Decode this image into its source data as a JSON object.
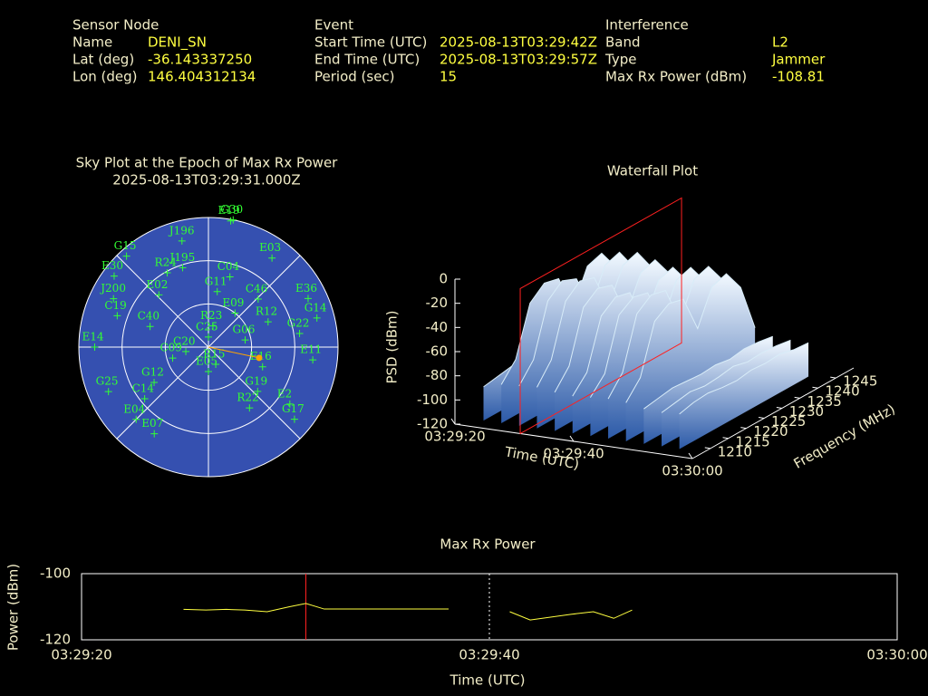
{
  "header": {
    "sections": [
      {
        "title": "Sensor Node",
        "fields": [
          {
            "label": "Name",
            "value": "DENI_SN"
          },
          {
            "label": "Lat (deg)",
            "value": "-36.143337250"
          },
          {
            "label": "Lon (deg)",
            "value": 146.404312134
          }
        ]
      },
      {
        "title": "Event",
        "fields": [
          {
            "label": "Start Time (UTC)",
            "value": "2025-08-13T03:29:42Z"
          },
          {
            "label": "End Time (UTC)",
            "value": "2025-08-13T03:29:57Z"
          },
          {
            "label": "Period (sec)",
            "value": 15
          }
        ]
      },
      {
        "title": "Interference",
        "fields": [
          {
            "label": "Band",
            "value": "L2"
          },
          {
            "label": "Type",
            "value": "Jammer"
          },
          {
            "label": "Max Rx Power (dBm)",
            "value": -108.81
          }
        ]
      }
    ]
  },
  "chart_data": [
    {
      "type": "polar_scatter",
      "title": "Sky Plot at the Epoch of Max Rx Power",
      "subtitle": "2025-08-13T03:29:31.000Z",
      "rlim": [
        90,
        0
      ],
      "rticks": [
        0,
        30,
        60
      ],
      "thetaticks": [
        0,
        45,
        90,
        135,
        180,
        225,
        270,
        315
      ],
      "background": "#3550b0",
      "color": "#33ff33",
      "labels": [
        "J196",
        "G15",
        "E30",
        "R24",
        "J195",
        "C04",
        "G11",
        "E03",
        "C46",
        "E36",
        "G14",
        "R12",
        "G22",
        "E11",
        "E16",
        "G19",
        "R22",
        "E2",
        "G17",
        "E07",
        "E04",
        "C14",
        "G25",
        "E14",
        "G12",
        "C09",
        "E05",
        "R15",
        "C19",
        "J200",
        "E02",
        "C40",
        "R23",
        "G06",
        "E09",
        "C25",
        "C20",
        "G30",
        "E19"
      ],
      "azimuth": [
        346,
        318,
        307,
        331,
        342,
        17,
        9,
        35.5,
        46,
        64,
        75,
        67,
        81.5,
        97,
        110,
        132,
        146,
        125,
        130,
        212,
        225,
        231,
        246,
        270,
        237,
        253,
        180,
        157,
        289,
        297,
        316.5,
        289.5,
        12,
        79,
        38,
        0,
        259,
        11,
        10
      ],
      "elevation": [
        14,
        5,
        8,
        31,
        32,
        39,
        51,
        14,
        42,
        13,
        12,
        45,
        26,
        17,
        50,
        44,
        39,
        21,
        12,
        19,
        19,
        33,
        14,
        11,
        45,
        64,
        73,
        77,
        23,
        16,
        40,
        47,
        75,
        64,
        60,
        83,
        74,
        0,
        1
      ],
      "marker": {
        "azimuth": 102,
        "elevation": 54,
        "color": "#ffa500"
      }
    },
    {
      "type": "waterfall3d",
      "title": "Waterfall Plot",
      "xlabel": "Time (UTC)",
      "ylabel": "Frequency (MHz)",
      "zlabel": "PSD (dBm)",
      "xlim": [
        0,
        40
      ],
      "xticks": [
        {
          "value": 0,
          "label": "03:29:20"
        },
        {
          "value": 20,
          "label": "03:29:40"
        },
        {
          "value": 40,
          "label": "03:30:00"
        }
      ],
      "ylim": [
        1205,
        1250
      ],
      "yticks": [
        1210,
        1215,
        1220,
        1225,
        1230,
        1235,
        1240,
        1245
      ],
      "zlim": [
        -120,
        0
      ],
      "zticks": [
        -120,
        -100,
        -80,
        -60,
        -40,
        -20,
        0
      ],
      "colors": [
        "#f2f9ff",
        "#2c5aa8"
      ],
      "marker_time": 11,
      "marker_color": "#ff2020",
      "frequencies": [
        1208,
        1212,
        1216,
        1220,
        1224,
        1228,
        1232,
        1236,
        1240,
        1244
      ],
      "x": [
        3,
        6,
        9,
        12,
        15,
        18,
        21,
        24,
        27,
        30,
        33,
        36
      ],
      "values": [
        [
          -92,
          -90,
          -88,
          -89,
          -90,
          -88,
          -91,
          -89,
          -90,
          -92
        ],
        [
          -88,
          -74,
          -34,
          -24,
          -27,
          -58,
          -30,
          -26,
          -44,
          -86
        ],
        [
          -87,
          -72,
          -30,
          -20,
          -25,
          -55,
          -27,
          -23,
          -42,
          -85
        ],
        [
          -86,
          -70,
          -28,
          -18,
          -22,
          -52,
          -25,
          -21,
          -40,
          -84
        ],
        [
          -88,
          -73,
          -31,
          -22,
          -26,
          -57,
          -29,
          -25,
          -43,
          -86
        ],
        [
          -89,
          -76,
          -36,
          -27,
          -30,
          -62,
          -33,
          -29,
          -47,
          -87
        ],
        [
          -88,
          -75,
          -33,
          -25,
          -28,
          -60,
          -31,
          -27,
          -45,
          -86
        ],
        [
          -87,
          -72,
          -30,
          -21,
          -24,
          -56,
          -28,
          -24,
          -42,
          -85
        ],
        [
          -88,
          -74,
          -34,
          -26,
          -29,
          -60,
          -32,
          -28,
          -46,
          -86
        ],
        [
          -91,
          -89,
          -87,
          -88,
          -89,
          -88,
          -90,
          -88,
          -89,
          -91
        ],
        [
          -92,
          -90,
          -88,
          -90,
          -89,
          -87,
          -90,
          -89,
          -90,
          -92
        ],
        [
          -91,
          -88,
          -87,
          -89,
          -90,
          -88,
          -89,
          -88,
          -91,
          -92
        ]
      ]
    },
    {
      "type": "line",
      "title": "Max Rx Power",
      "xlabel": "Time (UTC)",
      "ylabel": "Power (dBm)",
      "xlim": [
        0,
        40
      ],
      "xticks": [
        {
          "value": 0,
          "label": "03:29:20"
        },
        {
          "value": 20,
          "label": "03:29:40"
        },
        {
          "value": 40,
          "label": "03:30:00"
        }
      ],
      "ylim": [
        -120,
        -100
      ],
      "yticks": [
        -120,
        -100
      ],
      "grid": true,
      "marker_time": 11,
      "marker_color": "#ff2020",
      "x": [
        5,
        6.1,
        7.1,
        8,
        9.1,
        10.2,
        11,
        11.9,
        18,
        19.5,
        21,
        22,
        24,
        25.1,
        26.1,
        27
      ],
      "series": [
        {
          "color": "#ffff40",
          "values": [
            -110.8,
            -111,
            -110.8,
            -111,
            -111.5,
            -110,
            -109,
            -110.7,
            -110.7,
            null,
            -111.5,
            -114,
            -112.3,
            -111.5,
            -113.5,
            -111
          ]
        }
      ]
    }
  ]
}
